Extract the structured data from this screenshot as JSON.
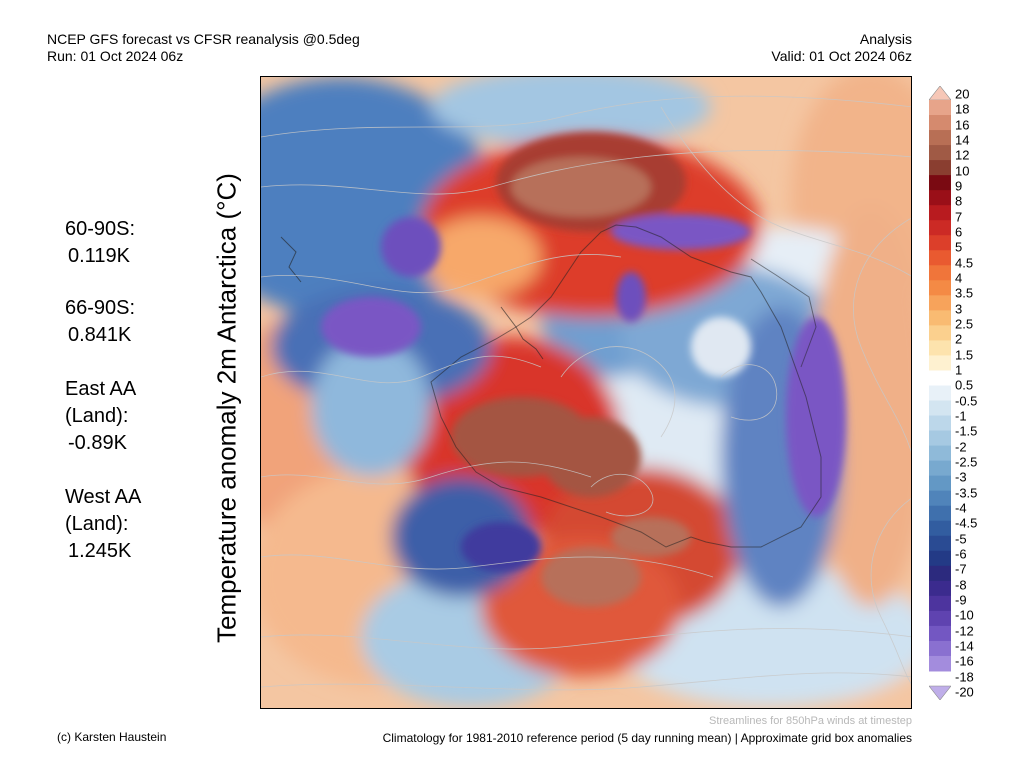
{
  "header": {
    "title": "NCEP GFS forecast vs CFSR reanalysis @0.5deg",
    "run": "Run: 01 Oct 2024 06z",
    "kind": "Analysis",
    "valid": "Valid: 01 Oct 2024 06z"
  },
  "map": {
    "title": "Temperature anomaly 2m Antarctica (°C)",
    "region": "Antarctica / Southern Ocean, polar stereographic",
    "overlay": "850hPa wind streamlines"
  },
  "stats": [
    {
      "label": "60-90S:",
      "value": "0.119K"
    },
    {
      "label": "66-90S:",
      "value": "0.841K"
    },
    {
      "label": "East AA\n(Land):",
      "value": "-0.89K"
    },
    {
      "label": "West AA\n(Land):",
      "value": "1.245K"
    }
  ],
  "colorbar": {
    "labels": [
      "20",
      "18",
      "16",
      "14",
      "12",
      "10",
      "9",
      "8",
      "7",
      "6",
      "5",
      "4.5",
      "4",
      "3.5",
      "3",
      "2.5",
      "2",
      "1.5",
      "1",
      "0.5",
      "-0.5",
      "-1",
      "-1.5",
      "-2",
      "-2.5",
      "-3",
      "-3.5",
      "-4",
      "-4.5",
      "-5",
      "-6",
      "-7",
      "-8",
      "-9",
      "-10",
      "-12",
      "-14",
      "-16",
      "-18",
      "-20"
    ],
    "colors": [
      "#f6c7b7",
      "#e7a48a",
      "#d58a6e",
      "#b86f55",
      "#a05a45",
      "#8a3e30",
      "#7a0a12",
      "#9a0f18",
      "#b81b1f",
      "#cc2a25",
      "#dc3f2a",
      "#e95a30",
      "#f0753a",
      "#f48a45",
      "#f7a35b",
      "#f9bb72",
      "#fbd08e",
      "#fde3ad",
      "#fef1d0",
      "#ffffff",
      "#e8f1f8",
      "#d3e5f1",
      "#bcd7ea",
      "#a6c9e2",
      "#8fbad9",
      "#78a9cf",
      "#6398c5",
      "#5084ba",
      "#3f70ad",
      "#325da0",
      "#2a4b93",
      "#233a86",
      "#2c2a7e",
      "#3b2b8e",
      "#4d349e",
      "#5f43b0",
      "#7357c2",
      "#8a70d0",
      "#a38cdd",
      "#bfaee9"
    ]
  },
  "footer": {
    "credit": "(c) Karsten Haustein",
    "streamlines": "Streamlines for 850hPa winds at timestep",
    "climatology": "Climatology for 1981-2010 reference period (5 day running mean) | Approximate grid box anomalies"
  }
}
